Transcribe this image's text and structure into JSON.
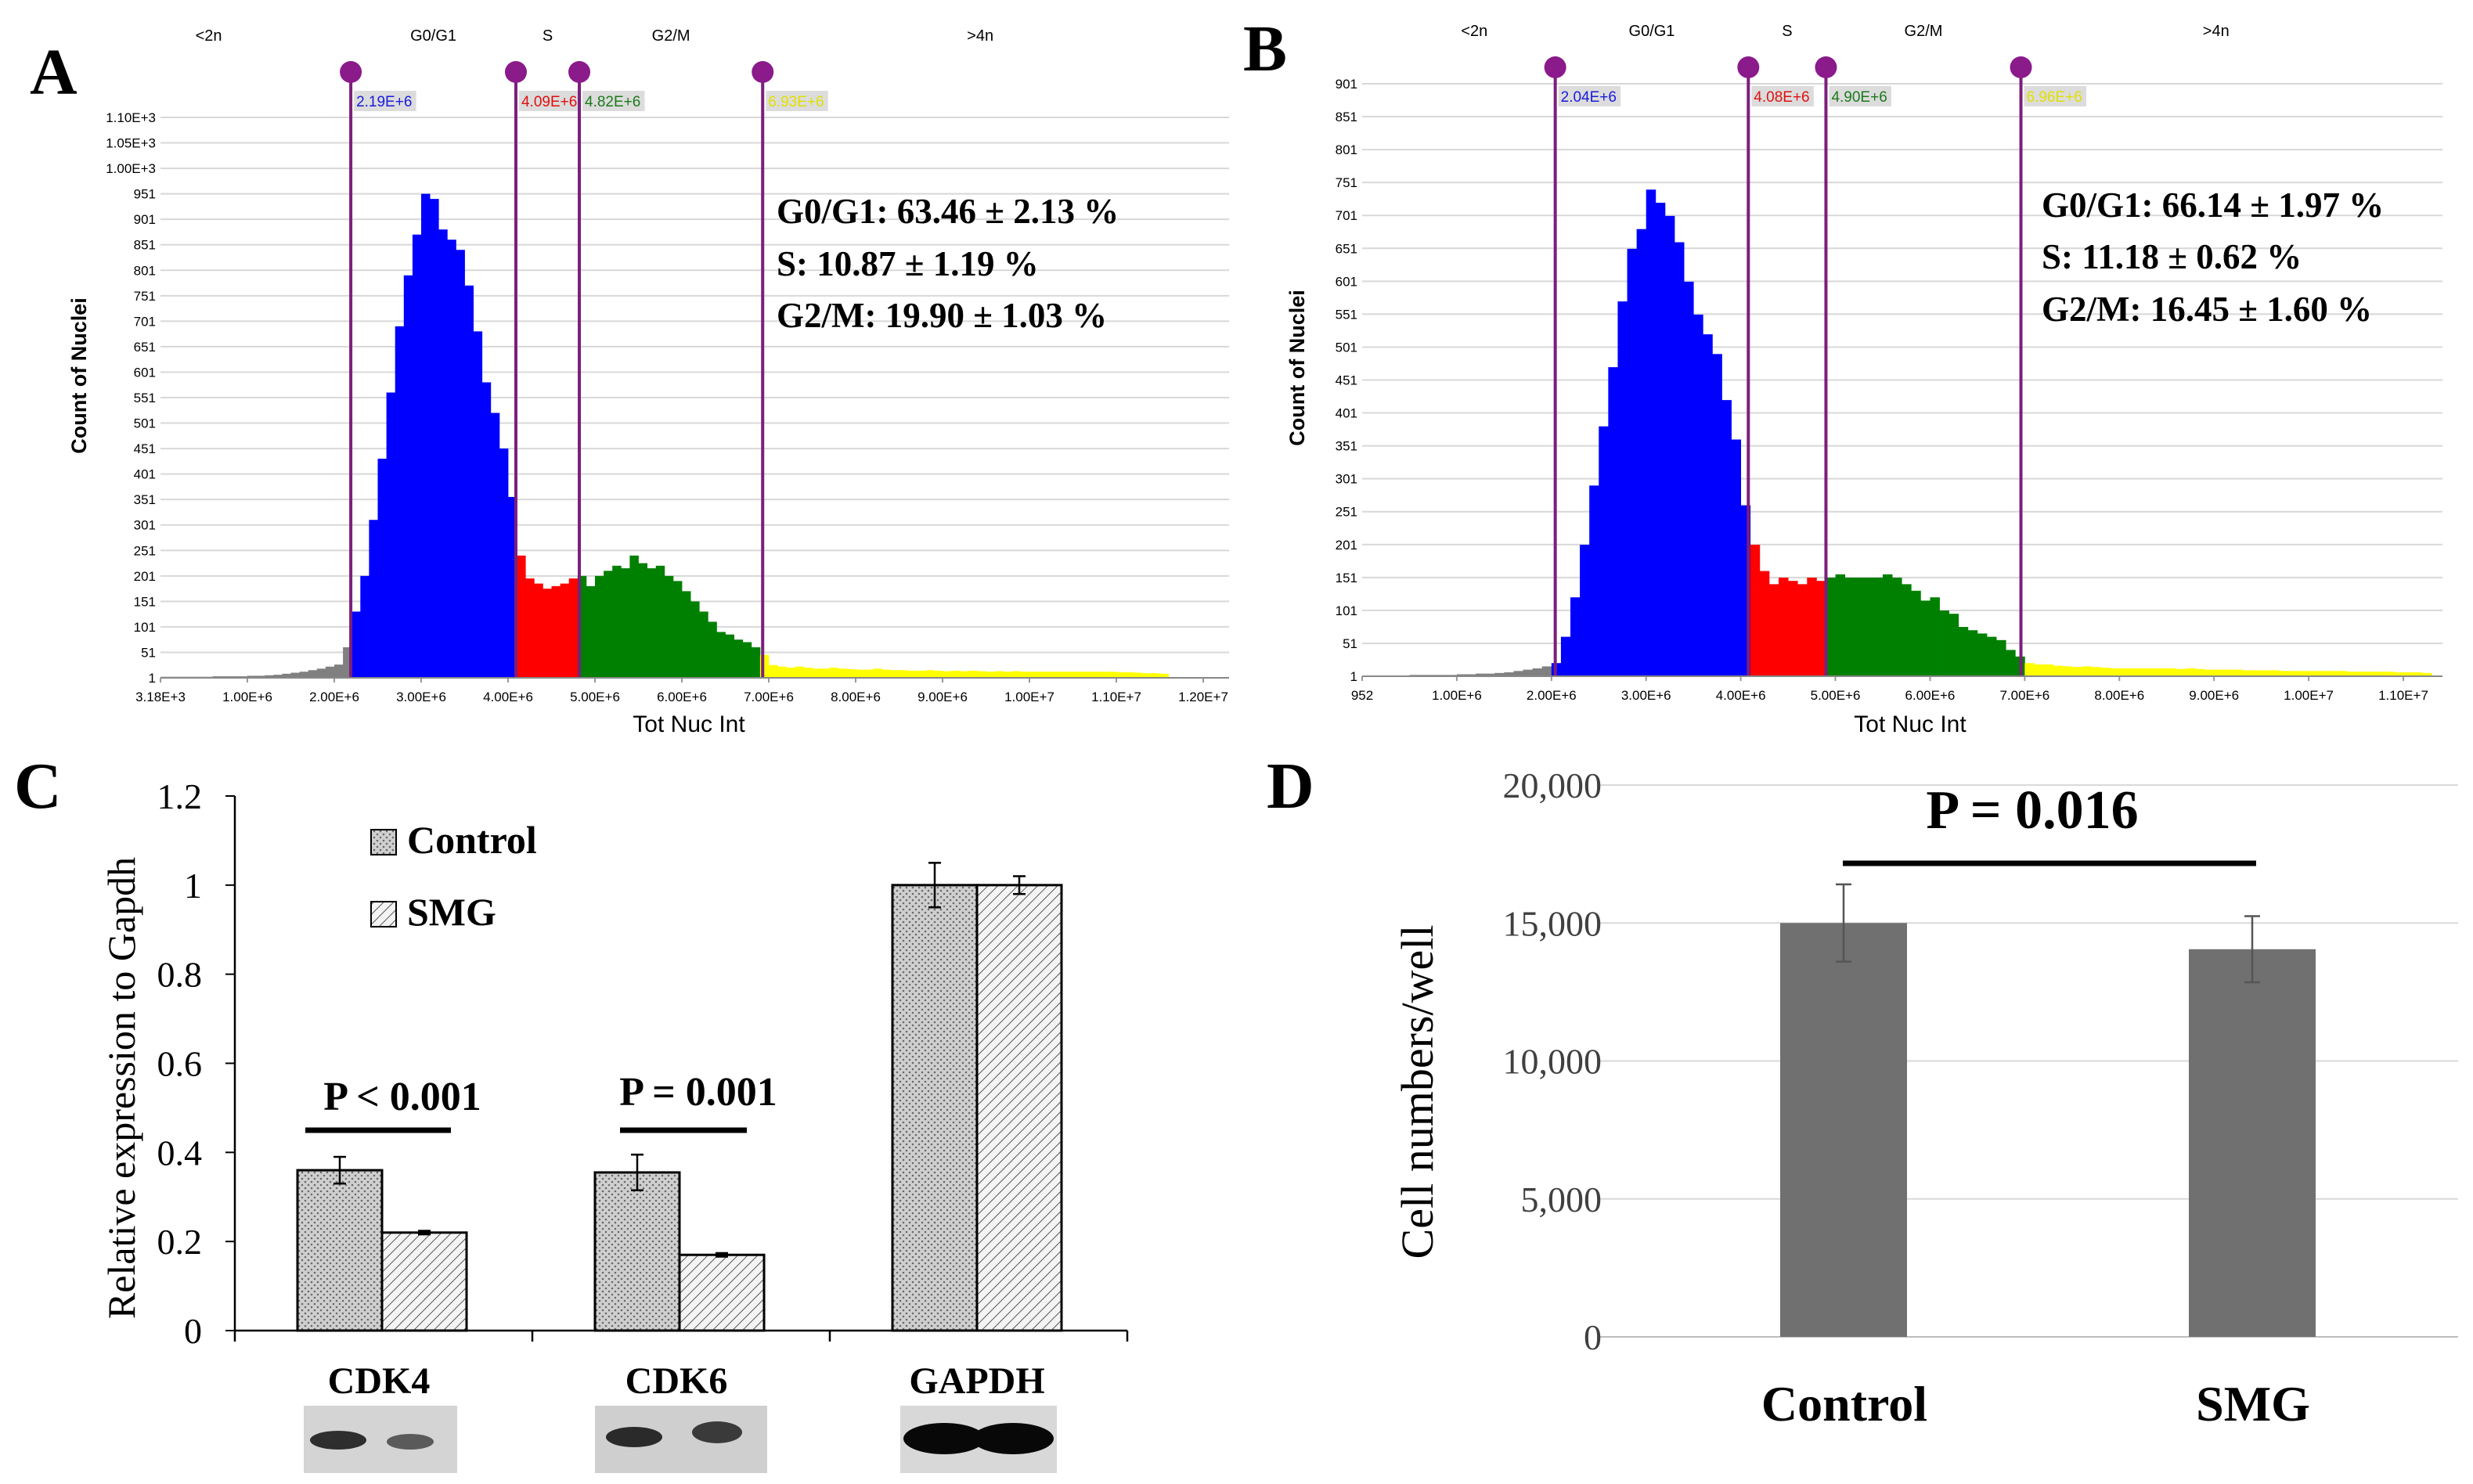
{
  "panels": {
    "A": {
      "letter": "A",
      "xlabel": "Tot Nuc Int",
      "ylabel": "Count of Nuclei",
      "region_labels": [
        "<2n",
        "G0/G1",
        "S",
        "G2/M",
        ">4n"
      ],
      "y_ticks": [
        "1",
        "51",
        "101",
        "151",
        "201",
        "251",
        "301",
        "351",
        "401",
        "451",
        "501",
        "551",
        "601",
        "651",
        "701",
        "751",
        "801",
        "851",
        "901",
        "951",
        "1.00E+3",
        "1.05E+3",
        "1.10E+3"
      ],
      "x_ticks": [
        "3.18E+3",
        "1.00E+6",
        "2.00E+6",
        "3.00E+6",
        "4.00E+6",
        "5.00E+6",
        "6.00E+6",
        "7.00E+6",
        "8.00E+6",
        "9.00E+6",
        "1.00E+7",
        "1.10E+7",
        "1.20E+7"
      ],
      "markers": [
        {
          "label": "2.19E+6",
          "value": 2190000,
          "color": "#1a1adc",
          "bg": "#dcdcdc"
        },
        {
          "label": "4.09E+6",
          "value": 4090000,
          "color": "#e01010",
          "bg": "#dcdcdc"
        },
        {
          "label": "4.82E+6",
          "value": 4820000,
          "color": "#1a7a1a",
          "bg": "#dcdcdc"
        },
        {
          "label": "6.93E+6",
          "value": 6930000,
          "color": "#e0e000",
          "bg": "#dcdcdc"
        }
      ],
      "stats": [
        "G0/G1: 63.46 ± 2.13 %",
        "S: 10.87 ± 1.19 %",
        "G2/M:  19.90 ± 1.03 %"
      ]
    },
    "B": {
      "letter": "B",
      "xlabel": "Tot Nuc Int",
      "ylabel": "Count of Nuclei",
      "region_labels": [
        "<2n",
        "G0/G1",
        "S",
        "G2/M",
        ">4n"
      ],
      "y_ticks": [
        "1",
        "51",
        "101",
        "151",
        "201",
        "251",
        "301",
        "351",
        "401",
        "451",
        "501",
        "551",
        "601",
        "651",
        "701",
        "751",
        "801",
        "851",
        "901"
      ],
      "x_ticks": [
        "952",
        "1.00E+6",
        "2.00E+6",
        "3.00E+6",
        "4.00E+6",
        "5.00E+6",
        "6.00E+6",
        "7.00E+6",
        "8.00E+6",
        "9.00E+6",
        "1.00E+7",
        "1.10E+7"
      ],
      "markers": [
        {
          "label": "2.04E+6",
          "value": 2040000,
          "color": "#1a1adc",
          "bg": "#dcdcdc"
        },
        {
          "label": "4.08E+6",
          "value": 4080000,
          "color": "#e01010",
          "bg": "#dcdcdc"
        },
        {
          "label": "4.90E+6",
          "value": 4900000,
          "color": "#1a7a1a",
          "bg": "#dcdcdc"
        },
        {
          "label": "6.96E+6",
          "value": 6960000,
          "color": "#e0e000",
          "bg": "#dcdcdc"
        }
      ],
      "stats": [
        "G0/G1: 66.14 ± 1.97 %",
        "S: 11.18 ± 0.62 %",
        "G2/M:  16.45 ± 1.60 %"
      ]
    },
    "C": {
      "letter": "C",
      "ylabel": "Relative expression to Gapdh",
      "y_ticks": [
        "0",
        "0.2",
        "0.4",
        "0.6",
        "0.8",
        "1",
        "1.2"
      ],
      "legend": [
        "Control",
        "SMG"
      ],
      "categories": [
        "CDK4",
        "CDK6",
        "GAPDH"
      ],
      "pvalues": [
        "P < 0.001",
        "P = 0.001"
      ]
    },
    "D": {
      "letter": "D",
      "ylabel": "Cell numbers/well",
      "y_ticks": [
        "0",
        "5,000",
        "10,000",
        "15,000",
        "20,000"
      ],
      "categories": [
        "Control",
        "SMG"
      ],
      "pvalue": "P = 0.016"
    }
  },
  "chart_data": [
    {
      "type": "bar",
      "panel": "A",
      "title": "",
      "xlabel": "Tot Nuc Int",
      "ylabel": "Count of Nuclei",
      "xlim": [
        3180,
        12200000
      ],
      "ylim": [
        1,
        1120
      ],
      "bin_width": 100000,
      "x_start": 0,
      "values": [
        2,
        2,
        2,
        2,
        2,
        2,
        3,
        3,
        3,
        3,
        4,
        4,
        5,
        6,
        8,
        10,
        12,
        15,
        18,
        22,
        26,
        60,
        130,
        200,
        310,
        430,
        560,
        690,
        790,
        870,
        950,
        940,
        880,
        860,
        840,
        770,
        680,
        580,
        520,
        450,
        355,
        240,
        195,
        185,
        175,
        180,
        185,
        195,
        200,
        180,
        200,
        210,
        220,
        215,
        240,
        225,
        215,
        220,
        200,
        190,
        170,
        150,
        130,
        110,
        90,
        85,
        75,
        70,
        60,
        45,
        25,
        22,
        20,
        22,
        20,
        18,
        18,
        20,
        18,
        17,
        16,
        16,
        18,
        16,
        15,
        15,
        14,
        14,
        15,
        14,
        13,
        14,
        13,
        14,
        13,
        12,
        13,
        12,
        13,
        12,
        12,
        12,
        12,
        12,
        12,
        12,
        12,
        12,
        12,
        12,
        11,
        11,
        10,
        9,
        9,
        8
      ],
      "colors": {
        "pre2n": "#808080",
        "g0g1": "#0000ff",
        "s": "#ff0000",
        "g2m": "#008000",
        "post4n": "#ffff00"
      },
      "gates": [
        2190000,
        4090000,
        4820000,
        6930000
      ]
    },
    {
      "type": "bar",
      "panel": "B",
      "title": "",
      "xlabel": "Tot Nuc Int",
      "ylabel": "Count of Nuclei",
      "xlim": [
        952,
        11100000
      ],
      "ylim": [
        1,
        930
      ],
      "bin_width": 100000,
      "x_start": 0,
      "values": [
        1,
        1,
        1,
        1,
        1,
        2,
        2,
        2,
        2,
        2,
        3,
        3,
        4,
        4,
        5,
        6,
        8,
        10,
        12,
        15,
        20,
        60,
        120,
        200,
        290,
        380,
        470,
        570,
        650,
        680,
        740,
        720,
        700,
        660,
        600,
        550,
        520,
        490,
        420,
        360,
        260,
        200,
        160,
        140,
        150,
        145,
        140,
        150,
        145,
        150,
        155,
        150,
        150,
        150,
        150,
        155,
        150,
        140,
        130,
        115,
        120,
        100,
        95,
        75,
        70,
        65,
        60,
        55,
        40,
        30,
        20,
        18,
        18,
        16,
        15,
        14,
        15,
        14,
        13,
        12,
        12,
        12,
        12,
        12,
        12,
        12,
        11,
        12,
        11,
        10,
        10,
        10,
        10,
        9,
        9,
        9,
        9,
        8,
        8,
        8,
        8,
        8,
        8,
        8,
        7,
        7,
        7,
        7,
        7,
        6,
        6,
        6,
        5
      ],
      "colors": {
        "pre2n": "#808080",
        "g0g1": "#0000ff",
        "s": "#ff0000",
        "g2m": "#008000",
        "post4n": "#ffff00"
      },
      "gates": [
        2040000,
        4080000,
        4900000,
        6960000
      ]
    },
    {
      "type": "bar",
      "panel": "C",
      "title": "",
      "xlabel": "",
      "ylabel": "Relative expression to Gapdh",
      "ylim": [
        0,
        1.2
      ],
      "categories": [
        "CDK4",
        "CDK6",
        "GAPDH"
      ],
      "series": [
        {
          "name": "Control",
          "values": [
            0.36,
            0.355,
            1.0
          ],
          "errors": [
            0.03,
            0.04,
            0.05
          ]
        },
        {
          "name": "SMG",
          "values": [
            0.22,
            0.17,
            1.0
          ],
          "errors": [
            0.004,
            0.004,
            0.02
          ]
        }
      ],
      "annotations": [
        "P < 0.001",
        "P = 0.001"
      ]
    },
    {
      "type": "bar",
      "panel": "D",
      "title": "",
      "xlabel": "",
      "ylabel": "Cell numbers/well",
      "ylim": [
        0,
        20000
      ],
      "categories": [
        "Control",
        "SMG"
      ],
      "values": [
        15000,
        14050
      ],
      "errors": [
        1400,
        1200
      ],
      "color": "#707070",
      "annotations": [
        "P = 0.016"
      ]
    }
  ]
}
